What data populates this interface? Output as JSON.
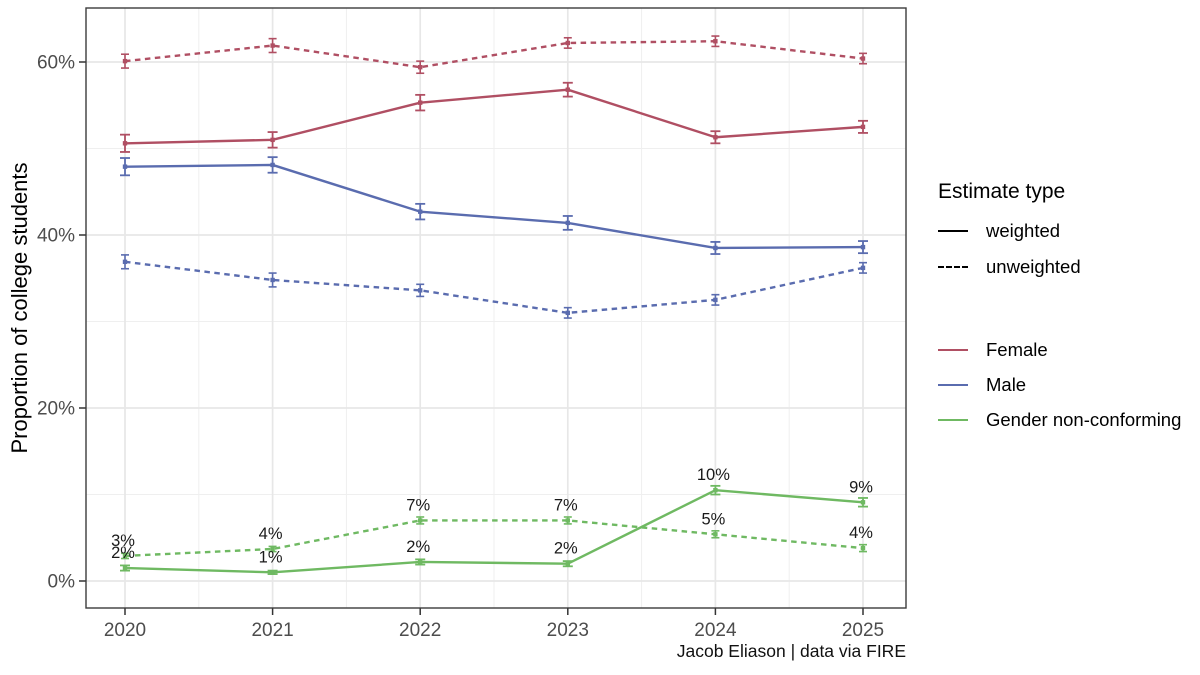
{
  "chart_data": {
    "type": "line",
    "title": "",
    "xlabel": "",
    "ylabel": "Proportion of college students",
    "caption": "Jacob Eliason | data via FIRE",
    "x": [
      2020,
      2021,
      2022,
      2023,
      2024,
      2025
    ],
    "x_tick_labels": [
      "2020",
      "2021",
      "2022",
      "2023",
      "2024",
      "2025"
    ],
    "y_ticks": [
      0,
      20,
      40,
      60
    ],
    "y_tick_labels": [
      "0%",
      "20%",
      "40%",
      "60%"
    ],
    "y_minor_ticks": [
      10,
      30,
      50
    ],
    "x_minor_ticks": [
      2020.5,
      2021.5,
      2022.5,
      2023.5,
      2024.5
    ],
    "ylim": [
      -3.1,
      66.2
    ],
    "xlim": [
      2019.74,
      2025.29
    ],
    "grid": true,
    "legend_position": "right",
    "palette": {
      "female": "#b04f63",
      "male": "#5a6caf",
      "gender_non_conforming": "#6fb962",
      "grid_major": "#e7e7e7",
      "grid_minor": "#efefef",
      "panel_border": "#3c3c3c",
      "tick": "#333333",
      "tick_label": "#4d4d4d",
      "data_label": "#1a1a1a"
    },
    "series": [
      {
        "name": "Female",
        "estimate": "unweighted",
        "color": "#b04f63",
        "dash": true,
        "values": [
          60.1,
          61.9,
          59.4,
          62.2,
          62.4,
          60.4
        ],
        "errors": [
          0.8,
          0.8,
          0.7,
          0.6,
          0.6,
          0.6
        ]
      },
      {
        "name": "Male",
        "estimate": "unweighted",
        "color": "#5a6caf",
        "dash": true,
        "values": [
          36.9,
          34.8,
          33.6,
          31.0,
          32.5,
          36.2
        ],
        "errors": [
          0.8,
          0.8,
          0.7,
          0.6,
          0.6,
          0.6
        ]
      },
      {
        "name": "Gender non-conforming",
        "estimate": "unweighted",
        "color": "#6fb962",
        "dash": true,
        "values": [
          2.9,
          3.7,
          7.0,
          7.0,
          5.4,
          3.8
        ],
        "errors": [
          0.3,
          0.3,
          0.4,
          0.4,
          0.4,
          0.4
        ],
        "labels": [
          "3%",
          "4%",
          "7%",
          "7%",
          "5%",
          "4%"
        ]
      },
      {
        "name": "Female",
        "estimate": "weighted",
        "color": "#b04f63",
        "dash": false,
        "values": [
          50.6,
          51.0,
          55.3,
          56.8,
          51.3,
          52.5
        ],
        "errors": [
          1.0,
          0.9,
          0.9,
          0.8,
          0.7,
          0.7
        ]
      },
      {
        "name": "Male",
        "estimate": "weighted",
        "color": "#5a6caf",
        "dash": false,
        "values": [
          47.9,
          48.1,
          42.7,
          41.4,
          38.5,
          38.6
        ],
        "errors": [
          1.0,
          0.9,
          0.9,
          0.8,
          0.7,
          0.7
        ]
      },
      {
        "name": "Gender non-conforming",
        "estimate": "weighted",
        "color": "#6fb962",
        "dash": false,
        "values": [
          1.5,
          1.0,
          2.2,
          2.0,
          10.5,
          9.1
        ],
        "errors": [
          0.3,
          0.2,
          0.3,
          0.3,
          0.5,
          0.5
        ],
        "labels": [
          "2%",
          "1%",
          "2%",
          "2%",
          "10%",
          "9%"
        ]
      }
    ]
  },
  "axes": {
    "y_title": "Proportion of college students"
  },
  "caption": {
    "text": "Jacob Eliason | data via FIRE"
  },
  "legend": {
    "estimate_type": {
      "title": "Estimate type",
      "items": [
        {
          "label": "weighted",
          "style": "solid"
        },
        {
          "label": "unweighted",
          "style": "dashed"
        }
      ]
    },
    "gender": {
      "items": [
        {
          "label": "Female",
          "color": "#b04f63"
        },
        {
          "label": "Male",
          "color": "#5a6caf"
        },
        {
          "label": "Gender non-conforming",
          "color": "#6fb962"
        }
      ]
    }
  }
}
